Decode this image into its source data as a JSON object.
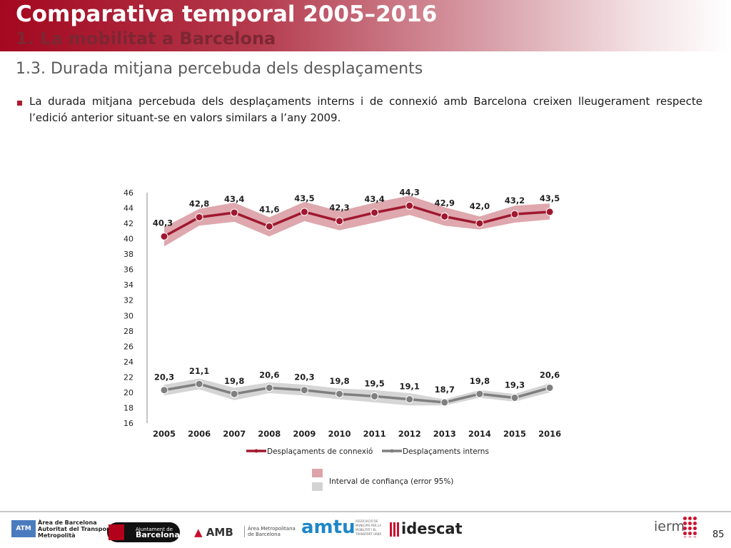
{
  "header": {
    "title": "Comparativa temporal 2005–2016",
    "subtitle": "1. La mobilitat a Barcelona"
  },
  "section_title": "1.3. Durada mitjana percebuda dels desplaçaments",
  "bullet_text": "La durada mitjana percebuda dels desplaçaments interns i de connexió amb Barcelona creixen lleugerament respecte l’edició anterior situant-se en valors similars a l’any 2009.",
  "chart_data": {
    "type": "line",
    "x": [
      "2005",
      "2006",
      "2007",
      "2008",
      "2009",
      "2010",
      "2011",
      "2012",
      "2013",
      "2014",
      "2015",
      "2016"
    ],
    "ylim": [
      16,
      46
    ],
    "y_ticks": [
      16,
      18,
      20,
      22,
      24,
      26,
      28,
      30,
      32,
      34,
      36,
      38,
      40,
      42,
      44,
      46
    ],
    "grid": false,
    "legend_placement": "bottom",
    "series": [
      {
        "name": "Desplaçaments de connexió",
        "values": [
          40.3,
          42.8,
          43.4,
          41.6,
          43.5,
          42.3,
          43.4,
          44.3,
          42.9,
          42.0,
          43.2,
          43.5
        ],
        "labels": [
          "40,3",
          "42,8",
          "43,4",
          "41,6",
          "43,5",
          "42,3",
          "43,4",
          "44,3",
          "42,9",
          "42,0",
          "43,2",
          "43,5"
        ],
        "ci_lower": [
          39.0,
          41.7,
          42.2,
          40.3,
          42.3,
          41.1,
          42.1,
          43.1,
          41.7,
          41.2,
          42.1,
          42.5
        ],
        "ci_upper": [
          41.5,
          43.9,
          44.7,
          42.8,
          44.8,
          43.6,
          44.7,
          45.6,
          44.1,
          42.9,
          44.3,
          44.6
        ],
        "color": "#a01830",
        "band_color": "#dca3aa"
      },
      {
        "name": "Desplaçaments interns",
        "values": [
          20.3,
          21.1,
          19.8,
          20.6,
          20.3,
          19.8,
          19.5,
          19.1,
          18.7,
          19.8,
          19.3,
          20.6
        ],
        "labels": [
          "20,3",
          "21,1",
          "19,8",
          "20,6",
          "20,3",
          "19,8",
          "19,5",
          "19,1",
          "18,7",
          "19,8",
          "19,3",
          "20,6"
        ],
        "ci_lower": [
          19.6,
          20.4,
          19.0,
          19.9,
          19.6,
          19.1,
          18.7,
          18.3,
          18.3,
          19.3,
          18.8,
          20.0
        ],
        "ci_upper": [
          21.0,
          21.8,
          20.6,
          21.3,
          21.0,
          20.5,
          20.3,
          19.9,
          19.1,
          20.3,
          19.8,
          21.2
        ],
        "color": "#7f7f7f",
        "band_color": "#d3d3d3"
      }
    ],
    "ci_legend_label": "Interval de confiança (error 95%)"
  },
  "footer": {
    "atm_box": "ATM",
    "atm_text": [
      "Àrea de Barcelona",
      "Autoritat del Transport",
      "Metropolità"
    ],
    "ajuntament_small": "Ajuntament de",
    "ajuntament_big": "Barcelona",
    "amb": "AMB",
    "amb_text": [
      "Àrea Metropolitana",
      "de Barcelona"
    ],
    "amtu": "amtu",
    "amtu_text": "ASSOCIACIÓ DE MUNICIPIS PER LA MOBILITAT I EL TRANSPORT URBÀ",
    "idescat": "idescat",
    "iermb": "ierm",
    "page_number": "85"
  }
}
